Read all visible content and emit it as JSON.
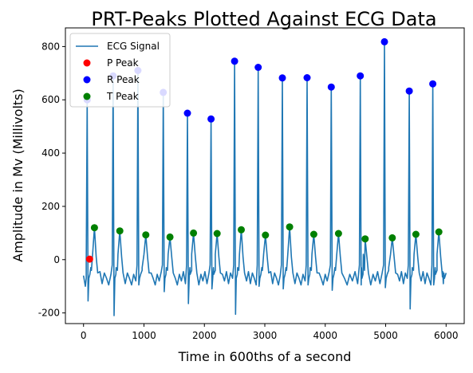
{
  "chart_data": {
    "type": "line",
    "title": "PRT-Peaks Plotted Against ECG Data",
    "xlabel": "Time in 600ths of a second",
    "ylabel": "Amplitude in Mv (Millivolts)",
    "xlim": [
      -300,
      6300
    ],
    "ylim": [
      -240,
      870
    ],
    "xticks": [
      0,
      1000,
      2000,
      3000,
      4000,
      5000,
      6000
    ],
    "yticks": [
      -200,
      0,
      200,
      400,
      600,
      800
    ],
    "grid": false,
    "legend_position": "top-left",
    "colors": {
      "signal": "#1f77b4",
      "p_peak": "#ff0000",
      "r_peak": "#0000ff",
      "t_peak": "#008000"
    },
    "series": [
      {
        "name": "ECG Signal",
        "kind": "line"
      },
      {
        "name": "P Peak",
        "kind": "scatter",
        "x": [
          100
        ],
        "y": [
          2
        ]
      },
      {
        "name": "R Peak",
        "kind": "scatter",
        "x": [
          60,
          490,
          900,
          1320,
          1720,
          2110,
          2500,
          2890,
          3290,
          3700,
          4100,
          4580,
          4980,
          5390,
          5780
        ],
        "y": [
          600,
          690,
          710,
          628,
          550,
          528,
          745,
          722,
          682,
          683,
          648,
          690,
          818,
          633,
          660
        ]
      },
      {
        "name": "T Peak",
        "kind": "scatter",
        "x": [
          180,
          600,
          1030,
          1430,
          1820,
          2210,
          2610,
          3010,
          3410,
          3810,
          4220,
          4660,
          5110,
          5500,
          5880
        ],
        "y": [
          120,
          108,
          93,
          85,
          100,
          98,
          112,
          92,
          123,
          95,
          98,
          78,
          82,
          95,
          104
        ]
      }
    ]
  }
}
